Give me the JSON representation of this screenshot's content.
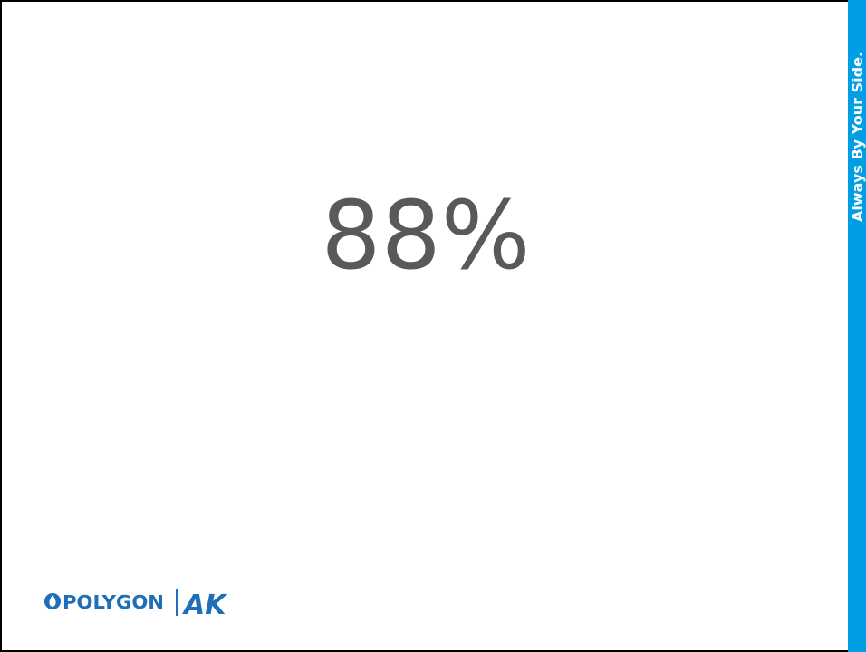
{
  "slide": {
    "statistic": "88%",
    "tagline": "Always By Your Side.",
    "logo": {
      "brand": "POLYGON",
      "mark": "AK"
    }
  }
}
